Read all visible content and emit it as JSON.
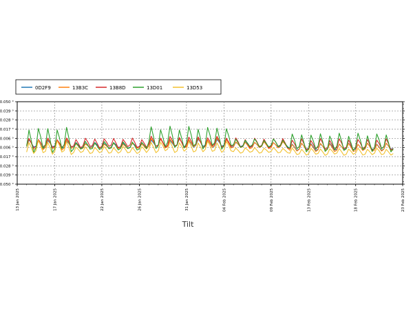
{
  "chart_data": {
    "type": "line",
    "title": "",
    "xlabel": "Tilt",
    "ylabel": "",
    "grid": true,
    "legend_position": "top-left",
    "x_ticks": [
      "13 Jan 2025",
      "17 Jan 2025",
      "22 Jan 2025",
      "26 Jan 2025",
      "31 Jan 2025",
      "04 Feb 2025",
      "09 Feb 2025",
      "13 Feb 2025",
      "18 Feb 2025",
      "23 Feb 2025"
    ],
    "x_range": [
      "2025-01-13",
      "2025-02-23"
    ],
    "y_ticks": [
      "-0.050 °",
      "-0.039 °",
      "-0.028 °",
      "-0.017 °",
      "-0.006 °",
      "0.006 °",
      "0.017 °",
      "0.028 °",
      "0.039 °",
      "0.050 °"
    ],
    "ylim": [
      -0.05,
      0.05
    ],
    "x_start": "2025-01-14T00:00",
    "x_end": "2025-02-22T00:00",
    "samples_per_day": 4,
    "series": [
      {
        "name": "0D2F9",
        "color": "#1f77b4",
        "segments": [
          {
            "from_day": 0,
            "base": -0.003,
            "amp": 0.006
          },
          {
            "from_day": 5,
            "base": -0.004,
            "amp": 0.004
          },
          {
            "from_day": 13,
            "base": -0.002,
            "amp": 0.006
          },
          {
            "from_day": 22,
            "base": -0.003,
            "amp": 0.004
          },
          {
            "from_day": 28,
            "base": -0.006,
            "amp": 0.005
          }
        ]
      },
      {
        "name": "13B3C",
        "color": "#ff7f0e",
        "segments": [
          {
            "from_day": 0,
            "base": -0.004,
            "amp": 0.008
          },
          {
            "from_day": 5,
            "base": -0.005,
            "amp": 0.004
          },
          {
            "from_day": 13,
            "base": -0.002,
            "amp": 0.007
          },
          {
            "from_day": 22,
            "base": -0.004,
            "amp": 0.005
          },
          {
            "from_day": 28,
            "base": -0.007,
            "amp": 0.006
          }
        ]
      },
      {
        "name": "13B8D",
        "color": "#d62728",
        "segments": [
          {
            "from_day": 0,
            "base": -0.002,
            "amp": 0.007
          },
          {
            "from_day": 5,
            "base": -0.002,
            "amp": 0.007
          },
          {
            "from_day": 13,
            "base": -0.001,
            "amp": 0.008
          },
          {
            "from_day": 22,
            "base": -0.002,
            "amp": 0.007
          },
          {
            "from_day": 28,
            "base": -0.004,
            "amp": 0.008
          }
        ]
      },
      {
        "name": "13D01",
        "color": "#2ca02c",
        "segments": [
          {
            "from_day": 0,
            "base": -0.001,
            "amp": 0.018
          },
          {
            "from_day": 5,
            "base": -0.005,
            "amp": 0.006
          },
          {
            "from_day": 13,
            "base": 0.002,
            "amp": 0.016
          },
          {
            "from_day": 22,
            "base": -0.002,
            "amp": 0.006
          },
          {
            "from_day": 28,
            "base": -0.003,
            "amp": 0.013
          }
        ]
      },
      {
        "name": "13D53",
        "color": "#f2c12e",
        "segments": [
          {
            "from_day": 0,
            "base": -0.008,
            "amp": 0.01
          },
          {
            "from_day": 5,
            "base": -0.01,
            "amp": 0.005
          },
          {
            "from_day": 13,
            "base": -0.007,
            "amp": 0.008
          },
          {
            "from_day": 22,
            "base": -0.01,
            "amp": 0.004
          },
          {
            "from_day": 28,
            "base": -0.012,
            "amp": 0.005
          }
        ]
      }
    ]
  }
}
